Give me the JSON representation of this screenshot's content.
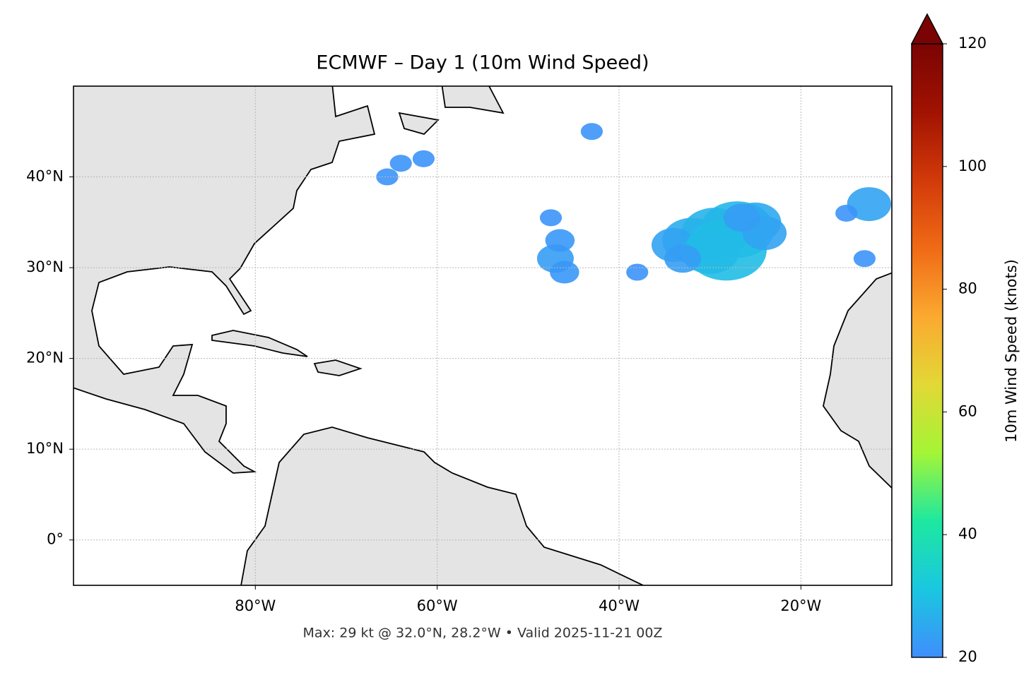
{
  "chart_data": {
    "type": "map",
    "title": "ECMWF – Day 1 (10m Wind Speed)",
    "footer": "Max: 29 kt @ 32.0°N, 28.2°W • Valid 2025-11-21 00Z",
    "xlim": [
      -100,
      -10
    ],
    "ylim": [
      -5,
      50
    ],
    "xticks": [
      {
        "value": -80,
        "label": "80°W"
      },
      {
        "value": -60,
        "label": "60°W"
      },
      {
        "value": -40,
        "label": "40°W"
      },
      {
        "value": -20,
        "label": "20°W"
      }
    ],
    "yticks": [
      {
        "value": 0,
        "label": "0°"
      },
      {
        "value": 10,
        "label": "10°N"
      },
      {
        "value": 20,
        "label": "20°N"
      },
      {
        "value": 30,
        "label": "30°N"
      },
      {
        "value": 40,
        "label": "40°N"
      }
    ],
    "grid": true,
    "colorbar": {
      "label": "10m Wind Speed (knots)",
      "lim": [
        20,
        120
      ],
      "ticks": [
        20,
        40,
        60,
        80,
        100,
        120
      ],
      "colors": [
        "#3f8efc",
        "#1ac7e0",
        "#1de8a0",
        "#a4f536",
        "#e2d836",
        "#fba930",
        "#f06a16",
        "#d23a0a",
        "#a11202",
        "#7a0403"
      ]
    },
    "wind": {
      "lon": [
        -32,
        -29.5,
        -27,
        -25,
        -34,
        -30,
        -28.2,
        -33,
        -24,
        -26.5,
        -47,
        -46.5,
        -47.5,
        -46,
        -12.5,
        -13,
        -15,
        -64,
        -61.5,
        -65.5,
        -38,
        -43
      ],
      "lat": [
        33,
        33.8,
        34.2,
        35,
        32.5,
        31.8,
        32,
        31,
        33.8,
        35.5,
        31,
        33,
        35.5,
        29.5,
        37,
        31,
        36,
        41.5,
        42,
        40,
        29.5,
        45
      ],
      "speed": [
        26,
        27,
        28,
        25,
        24,
        26,
        29,
        23,
        24,
        23,
        23,
        22,
        21,
        22,
        24,
        21,
        21,
        21,
        21,
        21,
        21,
        21
      ]
    }
  }
}
